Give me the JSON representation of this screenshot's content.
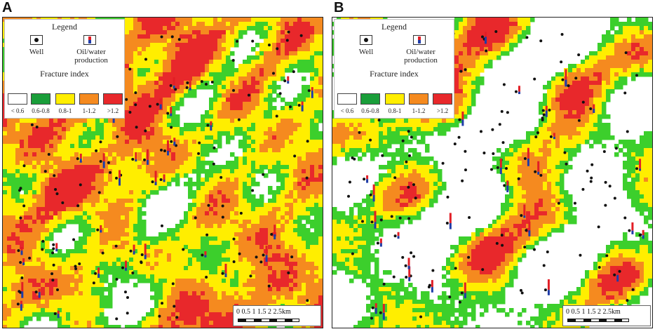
{
  "panels": [
    {
      "letter": "A",
      "legend": {
        "title": "Legend",
        "well_label": "Well",
        "production_label": "Oil/water\nproduction",
        "fracture_title": "Fracture index",
        "classes": [
          {
            "label": "< 0.6",
            "color": "#ffffff"
          },
          {
            "label": "0.6-0.8",
            "color": "#1a9e3a"
          },
          {
            "label": "0.8-1",
            "color": "#ffee00"
          },
          {
            "label": "1-1.2",
            "color": "#f58a1f"
          },
          {
            "label": ">1.2",
            "color": "#e8282b"
          }
        ]
      },
      "scale_ticks": "0  0.5  1  1.5  2  2.5km"
    },
    {
      "letter": "B",
      "legend": {
        "title": "Legend",
        "well_label": "Well",
        "production_label": "Oil/water\nproduction",
        "fracture_title": "Fracture index",
        "classes": [
          {
            "label": "< 0.6",
            "color": "#ffffff"
          },
          {
            "label": "0.6-0.8",
            "color": "#1a9e3a"
          },
          {
            "label": "0.8-1",
            "color": "#ffee00"
          },
          {
            "label": "1-1.2",
            "color": "#f58a1f"
          },
          {
            "label": ">1.2",
            "color": "#e8282b"
          }
        ]
      },
      "scale_ticks": "0  0.5  1  1.5  2  2.5km"
    }
  ],
  "map_colors": {
    "background": "#ffffff",
    "low": "#3ccf2c",
    "mid": "#ffee00",
    "high": "#f58a1f",
    "peak": "#e8282b",
    "well": "#111111",
    "oil": "#e21e26",
    "water": "#1f3ca8"
  }
}
